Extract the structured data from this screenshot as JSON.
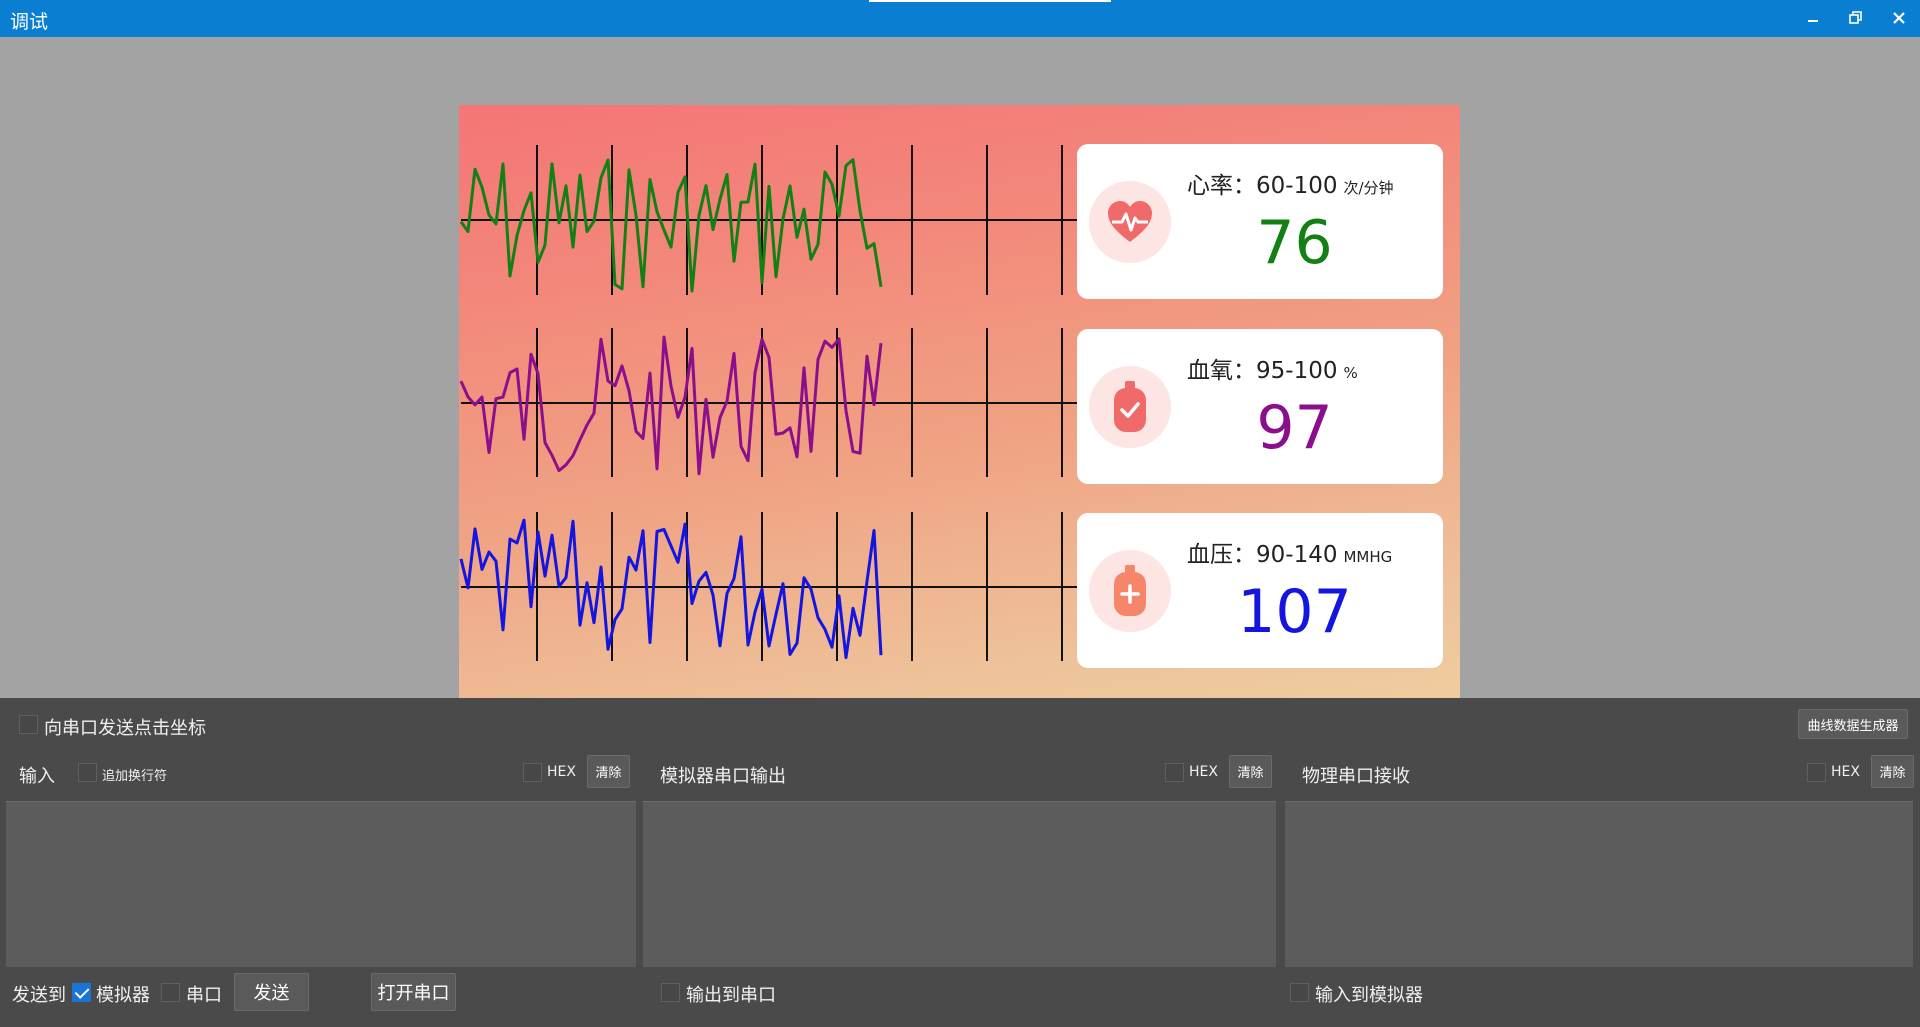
{
  "window": {
    "title": "调试"
  },
  "device": {
    "heart": {
      "label": "心率：60-100",
      "unit": "次/分钟",
      "value": "76",
      "color": "#138013",
      "icon": "heart-icon"
    },
    "oxygen": {
      "label": "血氧：95-100",
      "unit": "%",
      "value": "97",
      "color": "#8b0f8b",
      "icon": "oxygen-bag-icon"
    },
    "pressure": {
      "label": "血压：90-140",
      "unit": "MMHG",
      "value": "107",
      "color": "#1515e0",
      "icon": "blood-bag-icon"
    },
    "wave_colors": [
      "#138013",
      "#8b0f8b",
      "#1515e0"
    ]
  },
  "panel": {
    "send_coord_label": "向串口发送点击坐标",
    "curve_generator_label": "曲线数据生成器",
    "input_title": "输入",
    "append_newline_label": "追加换行符",
    "hex_label": "HEX",
    "clear_label": "清除",
    "sim_output_title": "模拟器串口输出",
    "phys_receive_title": "物理串口接收",
    "send_to_label": "发送到",
    "simulator_label": "模拟器",
    "serial_label": "串口",
    "send_label": "发送",
    "open_serial_label": "打开串口",
    "output_to_serial_label": "输出到串口",
    "input_to_sim_label": "输入到模拟器"
  }
}
